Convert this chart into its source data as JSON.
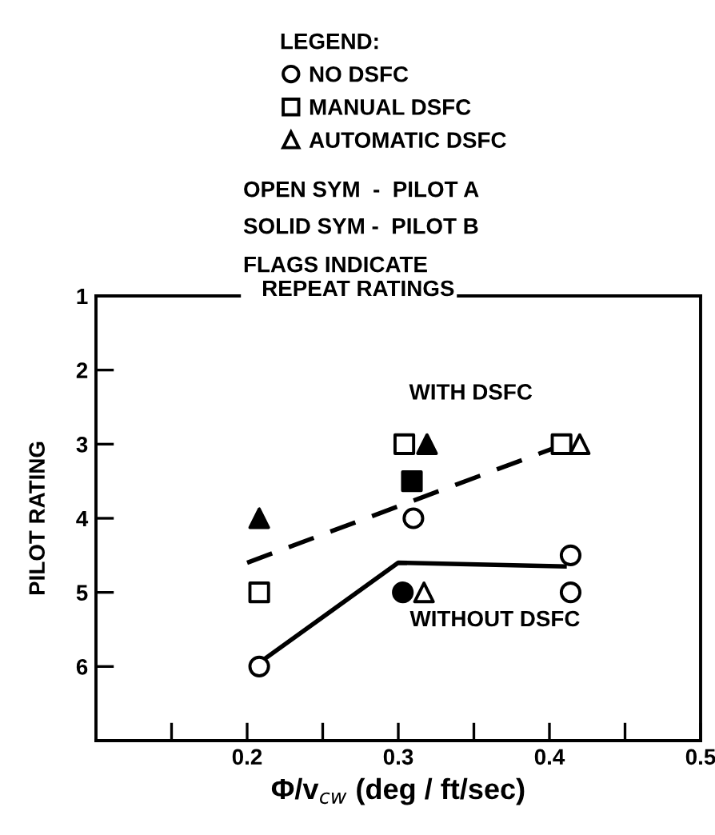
{
  "chart_data": {
    "type": "scatter",
    "legend_title": "LEGEND:",
    "xlabel": "Φ/v$_{cw}$ (deg / ft/sec)",
    "ylabel": "PILOT RATING",
    "xlim": [
      0.1,
      0.5
    ],
    "xticks": [
      {
        "value": 0.15,
        "label": null
      },
      0.2,
      {
        "value": 0.25,
        "label": null
      },
      0.3,
      {
        "value": 0.35,
        "label": null
      },
      0.4,
      {
        "value": 0.45,
        "label": null
      },
      0.5
    ],
    "ylim": [
      7,
      1
    ],
    "yticks": [
      1,
      2,
      3,
      4,
      5,
      6
    ],
    "grid": false,
    "legend": "top",
    "series": [
      {
        "name": "NO DSFC",
        "color": "#000000",
        "marker": "circle",
        "x": [
          0.208,
          0.31,
          0.414,
          0.414
        ],
        "values": [
          6,
          4,
          4.5,
          5
        ]
      },
      {
        "name": "MANUAL DSFC",
        "color": "#000000",
        "marker": "square",
        "x": [
          0.208,
          0.304,
          0.408
        ],
        "values": [
          5,
          3,
          3
        ]
      },
      {
        "name": "AUTOMATIC DSFC",
        "color": "#000000",
        "marker": "triangle",
        "x": [
          0.317,
          0.42
        ],
        "values": [
          5,
          3
        ]
      },
      {
        "color": "#000000",
        "marker": "circle",
        "x": [
          0.303
        ],
        "values": [
          5
        ]
      },
      {
        "color": "#000000",
        "marker": "square",
        "x": [
          0.309
        ],
        "values": [
          3.5
        ]
      },
      {
        "color": "#000000",
        "marker": "triangle",
        "x": [
          0.208,
          0.319
        ],
        "values": [
          4,
          3
        ]
      },
      {
        "type": "line",
        "color": "#000000",
        "line_style": "dashed",
        "marker": "none",
        "x": [
          0.2,
          0.41
        ],
        "values": [
          4.6,
          3
        ]
      },
      {
        "type": "line",
        "color": "#000000",
        "line_style": "solid",
        "marker": "none",
        "x": [
          0.208,
          0.3,
          0.41
        ],
        "values": [
          5.95,
          4.6,
          4.65
        ]
      }
    ],
    "annotations": [
      "OPEN SYM  -  PILOT A",
      "SOLID SYM -  PILOT B",
      "FLAGS INDICATE\n   REPEAT RATINGS",
      "WITH DSFC",
      "WITHOUT DSFC"
    ]
  }
}
